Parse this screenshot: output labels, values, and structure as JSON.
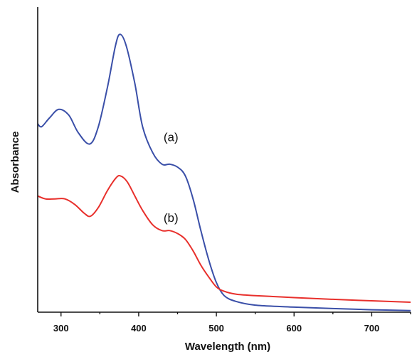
{
  "chart_data": {
    "type": "line",
    "title": "",
    "xlabel": "Wavelength (nm)",
    "ylabel": "Absorbance",
    "xlim": [
      270,
      750
    ],
    "ylim": [
      0,
      1
    ],
    "x_ticks": [
      300,
      400,
      500,
      600,
      700
    ],
    "x_tick_labels": [
      "300",
      "400",
      "500",
      "600",
      "700"
    ],
    "y_ticks_labeled": false,
    "grid": false,
    "legend": "none",
    "series": [
      {
        "color": "#3a4fa8",
        "label": "(a)",
        "x": [
          270,
          275,
          285,
          297,
          310,
          322,
          337,
          348,
          360,
          370,
          376,
          384,
          395,
          405,
          418,
          430,
          440,
          450,
          460,
          470,
          480,
          490,
          500,
          510,
          525,
          550,
          600,
          650,
          700,
          750
        ],
        "y": [
          0.65,
          0.64,
          0.67,
          0.7,
          0.68,
          0.62,
          0.58,
          0.64,
          0.78,
          0.92,
          0.96,
          0.92,
          0.79,
          0.64,
          0.55,
          0.51,
          0.51,
          0.5,
          0.47,
          0.39,
          0.28,
          0.18,
          0.1,
          0.055,
          0.035,
          0.022,
          0.015,
          0.01,
          0.006,
          0.003
        ]
      },
      {
        "color": "#e8302c",
        "label": "(b)",
        "x": [
          270,
          280,
          292,
          305,
          318,
          330,
          338,
          348,
          360,
          370,
          376,
          385,
          395,
          405,
          418,
          430,
          440,
          450,
          460,
          470,
          480,
          490,
          500,
          510,
          525,
          550,
          600,
          650,
          700,
          750
        ],
        "y": [
          0.4,
          0.39,
          0.39,
          0.39,
          0.37,
          0.34,
          0.33,
          0.36,
          0.42,
          0.46,
          0.47,
          0.45,
          0.4,
          0.35,
          0.3,
          0.28,
          0.28,
          0.27,
          0.25,
          0.21,
          0.16,
          0.12,
          0.085,
          0.07,
          0.06,
          0.055,
          0.048,
          0.042,
          0.037,
          0.032
        ]
      }
    ],
    "annotations": [
      {
        "text": "(a)",
        "series": 0
      },
      {
        "text": "(b)",
        "series": 1
      }
    ]
  }
}
